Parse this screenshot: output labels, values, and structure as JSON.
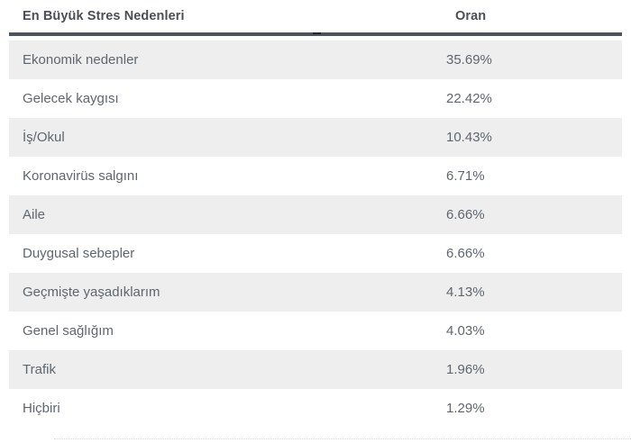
{
  "table": {
    "header": {
      "col1": "En Büyük Stres Nedenleri",
      "col2": "Oran"
    },
    "rows": [
      {
        "label": "Ekonomik nedenler",
        "value": "35.69%"
      },
      {
        "label": "Gelecek kaygısı",
        "value": "22.42%"
      },
      {
        "label": "İş/Okul",
        "value": "10.43%"
      },
      {
        "label": "Koronavirüs salgını",
        "value": "6.71%"
      },
      {
        "label": "Aile",
        "value": "6.66%"
      },
      {
        "label": "Duygusal sebepler",
        "value": "6.66%"
      },
      {
        "label": "Geçmişte yaşadıklarım",
        "value": "4.13%"
      },
      {
        "label": "Genel sağlığım",
        "value": "4.03%"
      },
      {
        "label": "Trafik",
        "value": "1.96%"
      },
      {
        "label": "Hiçbiri",
        "value": "1.29%"
      }
    ]
  },
  "chart_data": {
    "type": "table",
    "title": "En Büyük Stres Nedenleri",
    "columns": [
      "En Büyük Stres Nedenleri",
      "Oran"
    ],
    "categories": [
      "Ekonomik nedenler",
      "Gelecek kaygısı",
      "İş/Okul",
      "Koronavirüs salgını",
      "Aile",
      "Duygusal sebepler",
      "Geçmişte yaşadıklarım",
      "Genel sağlığım",
      "Trafik",
      "Hiçbiri"
    ],
    "values_percent": [
      35.69,
      22.42,
      10.43,
      6.71,
      6.66,
      6.66,
      4.13,
      4.03,
      1.96,
      1.29
    ],
    "layout": {
      "striping": "first-row-shaded-then-alternating",
      "header_divider": true,
      "grid": "off"
    }
  },
  "colors": {
    "header_text": "#4b4e55",
    "header_divider": "#4e545d",
    "row_text": "#60666e",
    "stripe_background": "#eeeeee",
    "page_background": "#ffffff"
  }
}
